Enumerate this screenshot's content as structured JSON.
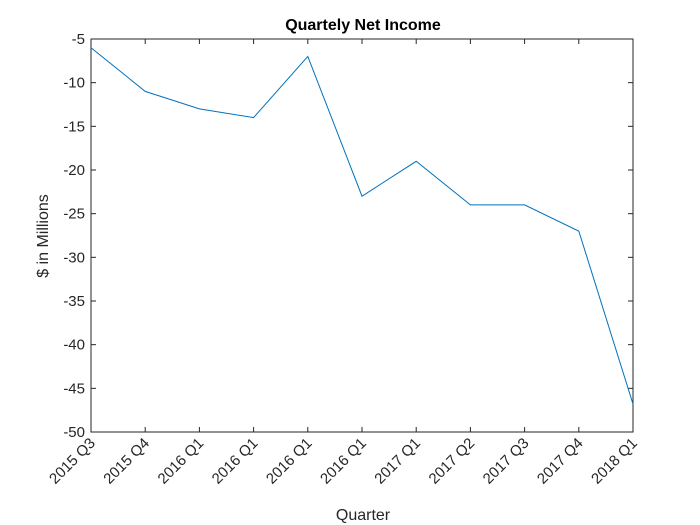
{
  "chart_data": {
    "type": "line",
    "title": "Quartely Net Income",
    "xlabel": "Quarter",
    "ylabel": "$ in Millions",
    "categories": [
      "2015 Q3",
      "2015 Q4",
      "2016 Q1",
      "2016 Q1",
      "2016 Q1",
      "2016 Q1",
      "2017 Q1",
      "2017 Q2",
      "2017 Q3",
      "2017 Q4",
      "2018 Q1"
    ],
    "values": [
      -6,
      -11,
      -13,
      -14,
      -7,
      -23,
      -19,
      -24,
      -24,
      -27,
      -46.8
    ],
    "ylim": [
      -50,
      -5
    ],
    "yticks": [
      -5,
      -10,
      -15,
      -20,
      -25,
      -30,
      -35,
      -40,
      -45,
      -50
    ],
    "grid": false,
    "line_color": "#0072BD"
  }
}
